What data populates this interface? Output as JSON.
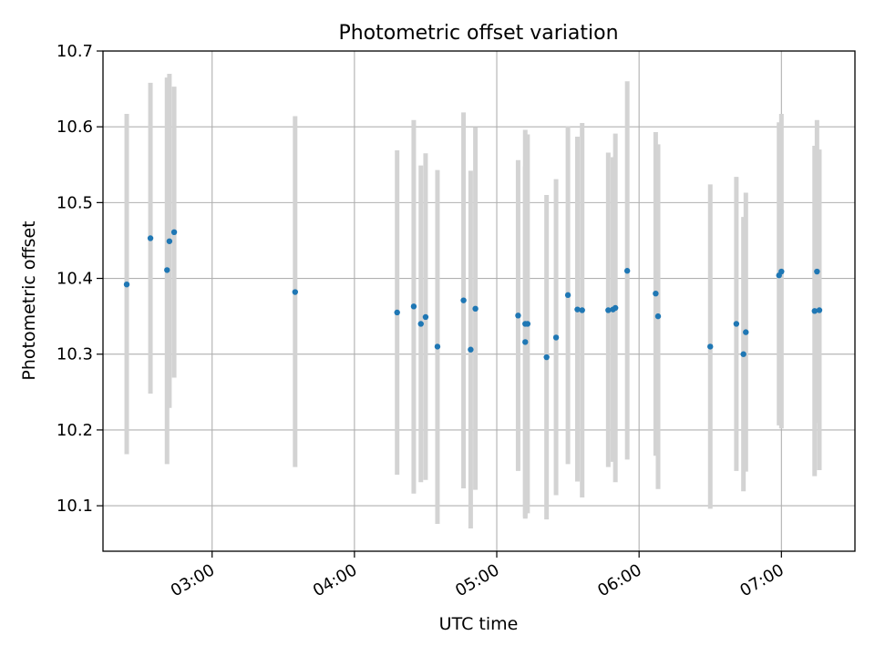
{
  "chart_data": {
    "type": "scatter",
    "title": "Photometric offset variation",
    "xlabel": "UTC time",
    "ylabel": "Photometric offset",
    "xlim": [
      "02:14",
      "07:31"
    ],
    "ylim": [
      10.04,
      10.7
    ],
    "grid": true,
    "error_bars": true,
    "colors": {
      "marker": "#1f77b4",
      "errorbar": "#d3d3d3",
      "grid": "#b0b0b0",
      "axes": "#000000"
    },
    "x_ticks": [
      "03:00",
      "04:00",
      "05:00",
      "06:00",
      "07:00"
    ],
    "y_ticks": [
      "10.1",
      "10.2",
      "10.3",
      "10.4",
      "10.5",
      "10.6",
      "10.7"
    ],
    "points": [
      {
        "x": "02:24",
        "y": 10.392,
        "ylow": 10.168,
        "yhigh": 10.617
      },
      {
        "x": "02:34",
        "y": 10.453,
        "ylow": 10.248,
        "yhigh": 10.658
      },
      {
        "x": "02:41",
        "y": 10.411,
        "ylow": 10.155,
        "yhigh": 10.665
      },
      {
        "x": "02:42",
        "y": 10.449,
        "ylow": 10.229,
        "yhigh": 10.67
      },
      {
        "x": "02:44",
        "y": 10.461,
        "ylow": 10.269,
        "yhigh": 10.653
      },
      {
        "x": "03:35",
        "y": 10.382,
        "ylow": 10.151,
        "yhigh": 10.614
      },
      {
        "x": "04:18",
        "y": 10.355,
        "ylow": 10.141,
        "yhigh": 10.569
      },
      {
        "x": "04:25",
        "y": 10.363,
        "ylow": 10.116,
        "yhigh": 10.609
      },
      {
        "x": "04:28",
        "y": 10.34,
        "ylow": 10.131,
        "yhigh": 10.549
      },
      {
        "x": "04:30",
        "y": 10.349,
        "ylow": 10.134,
        "yhigh": 10.565
      },
      {
        "x": "04:35",
        "y": 10.31,
        "ylow": 10.076,
        "yhigh": 10.543
      },
      {
        "x": "04:46",
        "y": 10.371,
        "ylow": 10.123,
        "yhigh": 10.619
      },
      {
        "x": "04:49",
        "y": 10.306,
        "ylow": 10.07,
        "yhigh": 10.542
      },
      {
        "x": "04:51",
        "y": 10.36,
        "ylow": 10.121,
        "yhigh": 10.599
      },
      {
        "x": "05:09",
        "y": 10.351,
        "ylow": 10.146,
        "yhigh": 10.556
      },
      {
        "x": "05:12",
        "y": 10.316,
        "ylow": 10.083,
        "yhigh": 10.548
      },
      {
        "x": "05:12",
        "y": 10.34,
        "ylow": 10.085,
        "yhigh": 10.596
      },
      {
        "x": "05:13",
        "y": 10.34,
        "ylow": 10.09,
        "yhigh": 10.59
      },
      {
        "x": "05:21",
        "y": 10.296,
        "ylow": 10.082,
        "yhigh": 10.51
      },
      {
        "x": "05:25",
        "y": 10.322,
        "ylow": 10.114,
        "yhigh": 10.531
      },
      {
        "x": "05:30",
        "y": 10.378,
        "ylow": 10.155,
        "yhigh": 10.601
      },
      {
        "x": "05:34",
        "y": 10.359,
        "ylow": 10.132,
        "yhigh": 10.587
      },
      {
        "x": "05:36",
        "y": 10.358,
        "ylow": 10.111,
        "yhigh": 10.605
      },
      {
        "x": "05:47",
        "y": 10.358,
        "ylow": 10.151,
        "yhigh": 10.566
      },
      {
        "x": "05:49",
        "y": 10.359,
        "ylow": 10.158,
        "yhigh": 10.56
      },
      {
        "x": "05:50",
        "y": 10.361,
        "ylow": 10.131,
        "yhigh": 10.591
      },
      {
        "x": "05:55",
        "y": 10.41,
        "ylow": 10.161,
        "yhigh": 10.66
      },
      {
        "x": "06:07",
        "y": 10.38,
        "ylow": 10.166,
        "yhigh": 10.593
      },
      {
        "x": "06:08",
        "y": 10.35,
        "ylow": 10.122,
        "yhigh": 10.577
      },
      {
        "x": "06:30",
        "y": 10.31,
        "ylow": 10.096,
        "yhigh": 10.524
      },
      {
        "x": "06:41",
        "y": 10.34,
        "ylow": 10.146,
        "yhigh": 10.534
      },
      {
        "x": "06:44",
        "y": 10.3,
        "ylow": 10.119,
        "yhigh": 10.481
      },
      {
        "x": "06:45",
        "y": 10.329,
        "ylow": 10.145,
        "yhigh": 10.513
      },
      {
        "x": "06:59",
        "y": 10.404,
        "ylow": 10.206,
        "yhigh": 10.606
      },
      {
        "x": "07:00",
        "y": 10.409,
        "ylow": 10.202,
        "yhigh": 10.617
      },
      {
        "x": "07:14",
        "y": 10.357,
        "ylow": 10.139,
        "yhigh": 10.575
      },
      {
        "x": "07:15",
        "y": 10.409,
        "ylow": 10.209,
        "yhigh": 10.609
      },
      {
        "x": "07:16",
        "y": 10.358,
        "ylow": 10.147,
        "yhigh": 10.57
      }
    ]
  }
}
